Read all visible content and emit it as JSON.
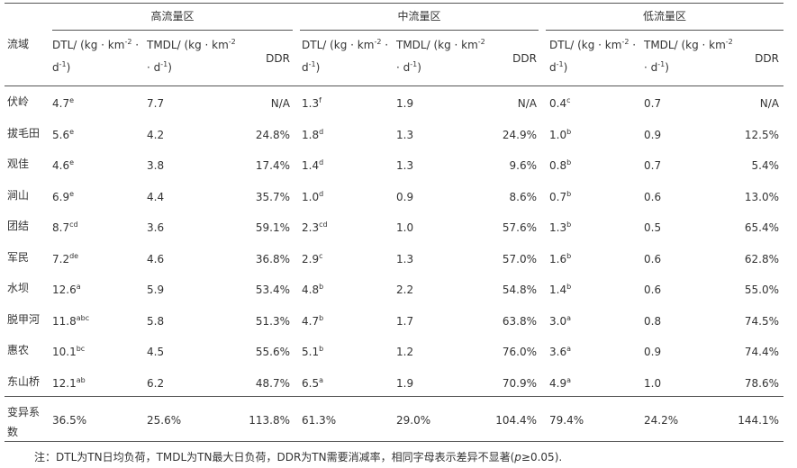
{
  "table": {
    "row_header": "流域",
    "groups": [
      "高流量区",
      "中流量区",
      "低流量区"
    ],
    "columns": [
      [
        "DTL/ (kg · km",
        "-2",
        " · d",
        "-1",
        ")"
      ],
      [
        "TMDL/ (kg · km",
        "-2",
        " · d",
        "-1",
        ")"
      ],
      [
        "DDR"
      ],
      [
        "DTL/ (kg · km",
        "-2",
        " · d",
        "-1",
        ")"
      ],
      [
        "TMDL/ (kg · km",
        "-2",
        " · d",
        "-1",
        ")"
      ],
      [
        "DDR"
      ],
      [
        "DTL/ (kg · km",
        "-2",
        " · d",
        "-1",
        ")"
      ],
      [
        "TMDL/ (kg · km",
        "-2",
        " · d",
        "-1",
        ")"
      ],
      [
        "DDR"
      ]
    ],
    "rows": [
      {
        "name": "伏岭",
        "cells": [
          [
            "4.7",
            "e"
          ],
          "7.7",
          "N/A",
          [
            "1.3",
            "f"
          ],
          "1.9",
          "N/A",
          [
            "0.4",
            "c"
          ],
          "0.7",
          "N/A"
        ]
      },
      {
        "name": "拔毛田",
        "cells": [
          [
            "5.6",
            "e"
          ],
          "4.2",
          "24.8%",
          [
            "1.8",
            "d"
          ],
          "1.3",
          "24.9%",
          [
            "1.0",
            "b"
          ],
          "0.9",
          "12.5%"
        ]
      },
      {
        "name": "观佳",
        "cells": [
          [
            "4.6",
            "e"
          ],
          "3.8",
          "17.4%",
          [
            "1.4",
            "d"
          ],
          "1.3",
          "9.6%",
          [
            "0.8",
            "b"
          ],
          "0.7",
          "5.4%"
        ]
      },
      {
        "name": "涧山",
        "cells": [
          [
            "6.9",
            "e"
          ],
          "4.4",
          "35.7%",
          [
            "1.0",
            "d"
          ],
          "0.9",
          "8.6%",
          [
            "0.7",
            "b"
          ],
          "0.6",
          "13.0%"
        ]
      },
      {
        "name": "团结",
        "cells": [
          [
            "8.7",
            "cd"
          ],
          "3.6",
          "59.1%",
          [
            "2.3",
            "cd"
          ],
          "1.0",
          "57.6%",
          [
            "1.3",
            "b"
          ],
          "0.5",
          "65.4%"
        ]
      },
      {
        "name": "军民",
        "cells": [
          [
            "7.2",
            "de"
          ],
          "4.6",
          "36.8%",
          [
            "2.9",
            "c"
          ],
          "1.3",
          "57.0%",
          [
            "1.6",
            "b"
          ],
          "0.6",
          "62.8%"
        ]
      },
      {
        "name": "水坝",
        "cells": [
          [
            "12.6",
            "a"
          ],
          "5.9",
          "53.4%",
          [
            "4.8",
            "b"
          ],
          "2.2",
          "54.8%",
          [
            "1.4",
            "b"
          ],
          "0.6",
          "55.0%"
        ]
      },
      {
        "name": "脱甲河",
        "cells": [
          [
            "11.8",
            "abc"
          ],
          "5.8",
          "51.3%",
          [
            "4.7",
            "b"
          ],
          "1.7",
          "63.8%",
          [
            "3.0",
            "a"
          ],
          "0.8",
          "74.5%"
        ]
      },
      {
        "name": "惠农",
        "cells": [
          [
            "10.1",
            "bc"
          ],
          "4.5",
          "55.6%",
          [
            "5.1",
            "b"
          ],
          "1.2",
          "76.0%",
          [
            "3.6",
            "a"
          ],
          "0.9",
          "74.4%"
        ]
      },
      {
        "name": "东山桥",
        "cells": [
          [
            "12.1",
            "ab"
          ],
          "6.2",
          "48.7%",
          [
            "6.5",
            "a"
          ],
          "1.9",
          "70.9%",
          [
            "4.9",
            "a"
          ],
          "1.0",
          "78.6%"
        ]
      }
    ],
    "footer": {
      "name": "变异系数",
      "cells": [
        "36.5%",
        "25.6%",
        "113.8%",
        "61.3%",
        "29.0%",
        "104.4%",
        "79.4%",
        "24.2%",
        "144.1%"
      ]
    },
    "note": [
      "注：DTL为TN日均负荷，TMDL为TN最大日负荷，DDR为TN需要消减率，相同字母表示差异不显著(",
      "p",
      "≥0.05)."
    ]
  }
}
